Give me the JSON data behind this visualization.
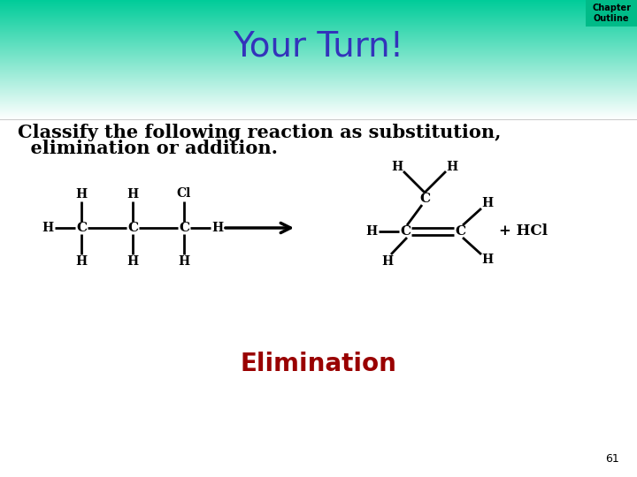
{
  "title": "Your Turn!",
  "title_color": "#3333bb",
  "title_fontsize": 28,
  "chapter_outline_text": "Chapter\nOutline",
  "chapter_outline_bg": "#00bb88",
  "question_line1": "Classify the following reaction as substitution,",
  "question_line2": "  elimination or addition.",
  "question_fontsize": 15,
  "answer_text": "Elimination",
  "answer_color": "#990000",
  "answer_fontsize": 20,
  "page_number": "61",
  "bg_color": "#ffffff"
}
